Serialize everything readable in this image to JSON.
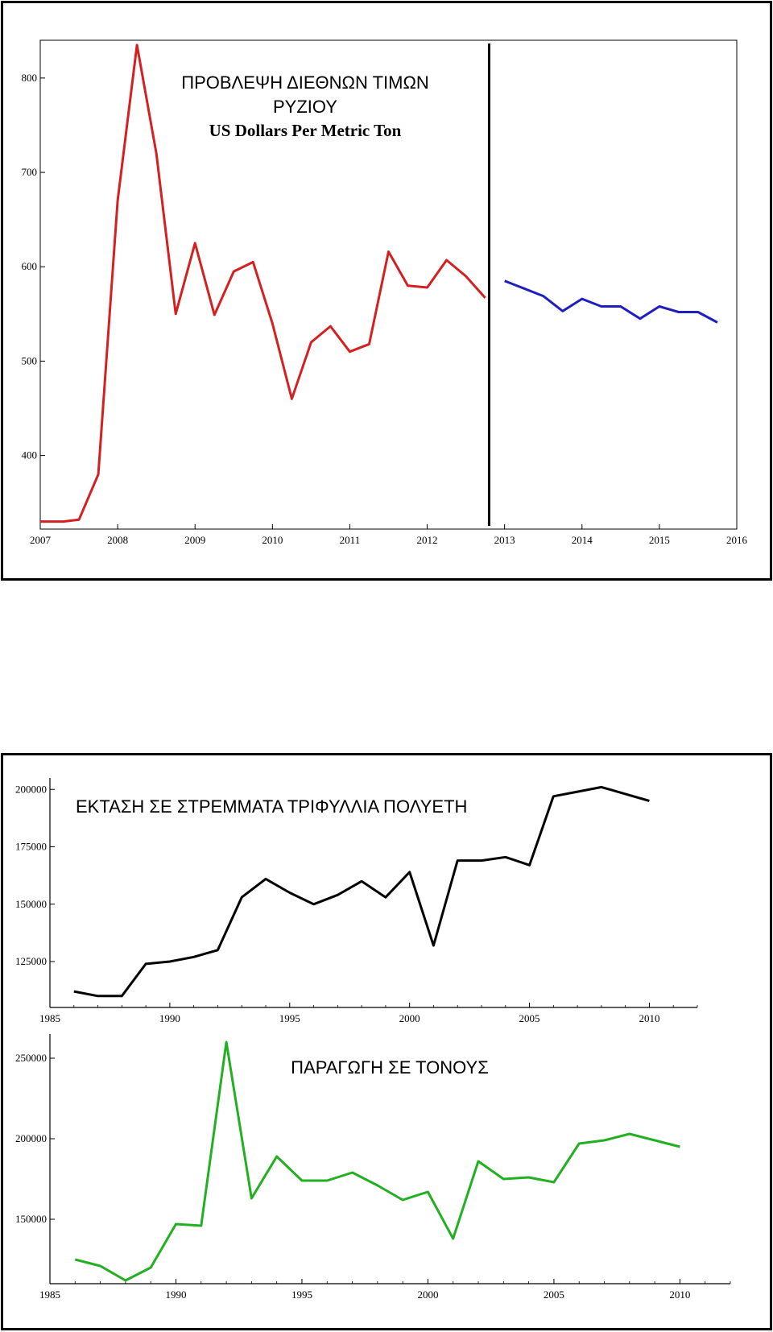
{
  "chart_data": [
    {
      "type": "line",
      "title": "ΠΡΟΒΛΕΨΗ ΔΙΕΘΝΩΝ  ΤΙΜΩΝ",
      "title_line2": "ΡΥΖΙΟΥ",
      "subtitle": "US Dollars Per Metric Ton",
      "xlim": [
        2007,
        2016
      ],
      "ylim": [
        322,
        840
      ],
      "xticks": [
        2007,
        2008,
        2009,
        2010,
        2011,
        2012,
        2013,
        2014,
        2015,
        2016
      ],
      "yticks": [
        400,
        500,
        600,
        700,
        800
      ],
      "marker_x": 2012.8,
      "series": [
        {
          "color": "#d42020",
          "x": [
            2007.0,
            2007.3,
            2007.5,
            2007.75,
            2008.0,
            2008.25,
            2008.5,
            2008.75,
            2009.0,
            2009.25,
            2009.5,
            2009.75,
            2010.0,
            2010.25,
            2010.5,
            2010.75,
            2011.0,
            2011.25,
            2011.5,
            2011.75,
            2012.0,
            2012.25,
            2012.5,
            2012.75
          ],
          "y": [
            330,
            330,
            332,
            380,
            670,
            835,
            720,
            550,
            625,
            549,
            595,
            605,
            540,
            460,
            520,
            537,
            510,
            518,
            616,
            580,
            578,
            607,
            590,
            567
          ]
        },
        {
          "color": "#1f1fc0",
          "x": [
            2013.0,
            2013.25,
            2013.5,
            2013.75,
            2014.0,
            2014.25,
            2014.5,
            2014.75,
            2015.0,
            2015.25,
            2015.5,
            2015.75
          ],
          "y": [
            585,
            577,
            569,
            553,
            566,
            558,
            558,
            545,
            558,
            552,
            552,
            541
          ]
        }
      ]
    },
    {
      "type": "line",
      "title": "ΕΚΤΑΣΗ ΣΕ ΣΤΡΕΜΜΑΤΑ ΤΡΙΦΥΛΛΙΑ ΠΟΛΥΕΤΗ",
      "xlim": [
        1985,
        2012
      ],
      "ylim": [
        105000,
        205000
      ],
      "xticks": [
        1985,
        1990,
        1995,
        2000,
        2005,
        2010
      ],
      "yticks": [
        125000,
        150000,
        175000,
        200000
      ],
      "series": [
        {
          "color": "#000000",
          "x": [
            1986,
            1987,
            1988,
            1989,
            1990,
            1991,
            1992,
            1993,
            1994,
            1995,
            1996,
            1997,
            1998,
            1999,
            2000,
            2001,
            2002,
            2003,
            2004,
            2005,
            2006,
            2007,
            2008,
            2009,
            2010
          ],
          "y": [
            112000,
            110000,
            110000,
            124000,
            125000,
            127000,
            130000,
            153000,
            161000,
            155000,
            150000,
            154000,
            160000,
            153000,
            164000,
            132000,
            169000,
            169000,
            170500,
            167000,
            197000,
            199000,
            201000,
            198000,
            195000
          ]
        }
      ]
    },
    {
      "type": "line",
      "title": "ΠΑΡΑΓΩΓΗ ΣΕ ΤΟΝΟΥΣ",
      "xlim": [
        1985,
        2012
      ],
      "ylim": [
        110000,
        265000
      ],
      "xticks": [
        1985,
        1990,
        1995,
        2000,
        2005,
        2010
      ],
      "yticks": [
        150000,
        200000,
        250000
      ],
      "series": [
        {
          "color": "#22b022",
          "x": [
            1986,
            1987,
            1988,
            1989,
            1990,
            1991,
            1992,
            1993,
            1994,
            1995,
            1996,
            1997,
            1998,
            1999,
            2000,
            2001,
            2002,
            2003,
            2004,
            2005,
            2006,
            2007,
            2008,
            2009,
            2010
          ],
          "y": [
            125000,
            121000,
            112000,
            120000,
            147000,
            146000,
            260000,
            163000,
            189000,
            174000,
            174000,
            179000,
            171000,
            162000,
            167000,
            138000,
            186000,
            175000,
            176000,
            173000,
            197000,
            199000,
            203000,
            199000,
            195000
          ]
        }
      ]
    }
  ]
}
